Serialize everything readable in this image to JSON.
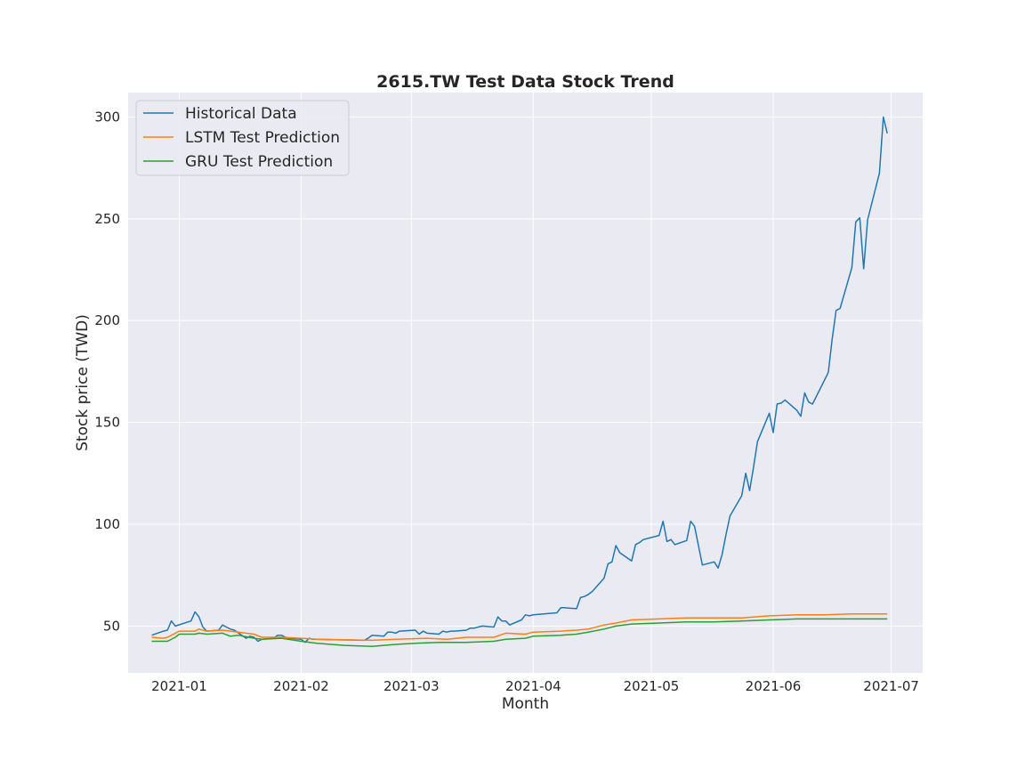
{
  "chart_data": {
    "type": "line",
    "title": "2615.TW  Test Data Stock Trend",
    "xlabel": "Month",
    "ylabel": "Stock price (TWD)",
    "x_range": [
      "2020-12-19",
      "2021-07-09"
    ],
    "ylim": [
      27,
      312
    ],
    "y_ticks": [
      50,
      100,
      150,
      200,
      250,
      300
    ],
    "x_ticks": [
      {
        "date": "2021-01-01",
        "label": "2021-01"
      },
      {
        "date": "2021-02-01",
        "label": "2021-02"
      },
      {
        "date": "2021-03-01",
        "label": "2021-03"
      },
      {
        "date": "2021-04-01",
        "label": "2021-04"
      },
      {
        "date": "2021-05-01",
        "label": "2021-05"
      },
      {
        "date": "2021-06-01",
        "label": "2021-06"
      },
      {
        "date": "2021-07-01",
        "label": "2021-07"
      }
    ],
    "grid": true,
    "legend_position": "top-left",
    "background": "#eaeaf2",
    "series": [
      {
        "name": "Historical Data",
        "color": "#1f77b4",
        "points": [
          [
            "2020-12-25",
            45.5
          ],
          [
            "2020-12-28",
            47.5
          ],
          [
            "2020-12-29",
            48.0
          ],
          [
            "2020-12-30",
            52.5
          ],
          [
            "2020-12-31",
            50.0
          ],
          [
            "2021-01-04",
            52.5
          ],
          [
            "2021-01-05",
            57.0
          ],
          [
            "2021-01-06",
            54.5
          ],
          [
            "2021-01-07",
            49.5
          ],
          [
            "2021-01-08",
            47.5
          ],
          [
            "2021-01-11",
            48.0
          ],
          [
            "2021-01-12",
            50.5
          ],
          [
            "2021-01-13",
            49.5
          ],
          [
            "2021-01-14",
            48.5
          ],
          [
            "2021-01-15",
            48.0
          ],
          [
            "2021-01-18",
            44.0
          ],
          [
            "2021-01-19",
            45.0
          ],
          [
            "2021-01-20",
            44.5
          ],
          [
            "2021-01-21",
            42.5
          ],
          [
            "2021-01-22",
            43.5
          ],
          [
            "2021-01-25",
            44.0
          ],
          [
            "2021-01-26",
            45.5
          ],
          [
            "2021-01-27",
            45.5
          ],
          [
            "2021-01-28",
            44.5
          ],
          [
            "2021-01-29",
            44.0
          ],
          [
            "2021-02-01",
            43.5
          ],
          [
            "2021-02-02",
            42.0
          ],
          [
            "2021-02-03",
            44.0
          ],
          [
            "2021-02-04",
            43.5
          ],
          [
            "2021-02-05",
            43.5
          ],
          [
            "2021-02-17",
            43.0
          ],
          [
            "2021-02-18",
            44.0
          ],
          [
            "2021-02-19",
            45.5
          ],
          [
            "2021-02-22",
            45.0
          ],
          [
            "2021-02-23",
            47.0
          ],
          [
            "2021-02-24",
            47.0
          ],
          [
            "2021-02-25",
            46.5
          ],
          [
            "2021-02-26",
            47.5
          ],
          [
            "2021-03-02",
            48.0
          ],
          [
            "2021-03-03",
            46.0
          ],
          [
            "2021-03-04",
            47.5
          ],
          [
            "2021-03-05",
            46.5
          ],
          [
            "2021-03-08",
            46.0
          ],
          [
            "2021-03-09",
            47.5
          ],
          [
            "2021-03-10",
            47.0
          ],
          [
            "2021-03-11",
            47.5
          ],
          [
            "2021-03-12",
            47.5
          ],
          [
            "2021-03-15",
            48.0
          ],
          [
            "2021-03-16",
            49.0
          ],
          [
            "2021-03-17",
            49.0
          ],
          [
            "2021-03-18",
            49.5
          ],
          [
            "2021-03-19",
            50.0
          ],
          [
            "2021-03-22",
            49.5
          ],
          [
            "2021-03-23",
            54.5
          ],
          [
            "2021-03-24",
            52.5
          ],
          [
            "2021-03-25",
            52.5
          ],
          [
            "2021-03-26",
            50.5
          ],
          [
            "2021-03-29",
            53.0
          ],
          [
            "2021-03-30",
            55.5
          ],
          [
            "2021-03-31",
            55.0
          ],
          [
            "2021-04-01",
            55.5
          ],
          [
            "2021-04-07",
            56.5
          ],
          [
            "2021-04-08",
            59.0
          ],
          [
            "2021-04-09",
            59.0
          ],
          [
            "2021-04-12",
            58.5
          ],
          [
            "2021-04-13",
            64.0
          ],
          [
            "2021-04-14",
            64.5
          ],
          [
            "2021-04-15",
            65.5
          ],
          [
            "2021-04-16",
            67.0
          ],
          [
            "2021-04-19",
            73.5
          ],
          [
            "2021-04-20",
            80.5
          ],
          [
            "2021-04-21",
            81.5
          ],
          [
            "2021-04-22",
            89.5
          ],
          [
            "2021-04-23",
            86.0
          ],
          [
            "2021-04-26",
            82.0
          ],
          [
            "2021-04-27",
            90.0
          ],
          [
            "2021-04-28",
            91.0
          ],
          [
            "2021-04-29",
            92.5
          ],
          [
            "2021-05-03",
            94.5
          ],
          [
            "2021-05-04",
            101.5
          ],
          [
            "2021-05-05",
            91.5
          ],
          [
            "2021-05-06",
            92.5
          ],
          [
            "2021-05-07",
            90.0
          ],
          [
            "2021-05-10",
            92.0
          ],
          [
            "2021-05-11",
            101.5
          ],
          [
            "2021-05-12",
            99.0
          ],
          [
            "2021-05-13",
            89.5
          ],
          [
            "2021-05-14",
            80.0
          ],
          [
            "2021-05-17",
            81.5
          ],
          [
            "2021-05-18",
            78.5
          ],
          [
            "2021-05-19",
            85.0
          ],
          [
            "2021-05-20",
            95.0
          ],
          [
            "2021-05-21",
            104.0
          ],
          [
            "2021-05-24",
            114.0
          ],
          [
            "2021-05-25",
            125.0
          ],
          [
            "2021-05-26",
            116.5
          ],
          [
            "2021-05-27",
            128.0
          ],
          [
            "2021-05-28",
            140.5
          ],
          [
            "2021-05-31",
            154.5
          ],
          [
            "2021-06-01",
            145.0
          ],
          [
            "2021-06-02",
            159.0
          ],
          [
            "2021-06-03",
            159.5
          ],
          [
            "2021-06-04",
            161.0
          ],
          [
            "2021-06-07",
            156.0
          ],
          [
            "2021-06-08",
            153.0
          ],
          [
            "2021-06-09",
            164.5
          ],
          [
            "2021-06-10",
            160.0
          ],
          [
            "2021-06-11",
            159.0
          ],
          [
            "2021-06-15",
            174.5
          ],
          [
            "2021-06-16",
            191.0
          ],
          [
            "2021-06-17",
            205.0
          ],
          [
            "2021-06-18",
            206.0
          ],
          [
            "2021-06-21",
            226.0
          ],
          [
            "2021-06-22",
            248.5
          ],
          [
            "2021-06-23",
            250.5
          ],
          [
            "2021-06-24",
            225.5
          ],
          [
            "2021-06-25",
            249.5
          ],
          [
            "2021-06-28",
            272.5
          ],
          [
            "2021-06-29",
            300.0
          ],
          [
            "2021-06-30",
            292.0
          ]
        ]
      },
      {
        "name": "LSTM Test Prediction",
        "color": "#ff7f0e",
        "points": [
          [
            "2020-12-25",
            44.5
          ],
          [
            "2020-12-28",
            44.0
          ],
          [
            "2020-12-29",
            44.5
          ],
          [
            "2020-12-31",
            46.5
          ],
          [
            "2021-01-01",
            47.5
          ],
          [
            "2021-01-05",
            47.5
          ],
          [
            "2021-01-06",
            48.5
          ],
          [
            "2021-01-08",
            47.5
          ],
          [
            "2021-01-12",
            48.0
          ],
          [
            "2021-01-14",
            47.5
          ],
          [
            "2021-01-18",
            46.5
          ],
          [
            "2021-01-20",
            46.0
          ],
          [
            "2021-01-22",
            44.5
          ],
          [
            "2021-01-27",
            44.5
          ],
          [
            "2021-02-01",
            44.0
          ],
          [
            "2021-02-05",
            43.5
          ],
          [
            "2021-02-19",
            43.0
          ],
          [
            "2021-02-25",
            43.5
          ],
          [
            "2021-03-05",
            44.0
          ],
          [
            "2021-03-10",
            43.5
          ],
          [
            "2021-03-15",
            44.5
          ],
          [
            "2021-03-22",
            44.5
          ],
          [
            "2021-03-25",
            46.5
          ],
          [
            "2021-03-30",
            46.0
          ],
          [
            "2021-04-01",
            47.0
          ],
          [
            "2021-04-08",
            47.5
          ],
          [
            "2021-04-12",
            48.0
          ],
          [
            "2021-04-15",
            48.5
          ],
          [
            "2021-04-19",
            50.5
          ],
          [
            "2021-04-22",
            51.5
          ],
          [
            "2021-04-26",
            53.0
          ],
          [
            "2021-05-03",
            53.5
          ],
          [
            "2021-05-10",
            54.0
          ],
          [
            "2021-05-17",
            54.0
          ],
          [
            "2021-05-24",
            54.0
          ],
          [
            "2021-05-31",
            55.0
          ],
          [
            "2021-06-07",
            55.5
          ],
          [
            "2021-06-14",
            55.5
          ],
          [
            "2021-06-21",
            56.0
          ],
          [
            "2021-06-30",
            56.0
          ]
        ]
      },
      {
        "name": "GRU Test Prediction",
        "color": "#2ca02c",
        "points": [
          [
            "2020-12-25",
            42.5
          ],
          [
            "2020-12-28",
            42.5
          ],
          [
            "2020-12-29",
            42.5
          ],
          [
            "2020-12-31",
            44.5
          ],
          [
            "2021-01-01",
            46.0
          ],
          [
            "2021-01-05",
            46.0
          ],
          [
            "2021-01-06",
            46.5
          ],
          [
            "2021-01-08",
            46.0
          ],
          [
            "2021-01-12",
            46.5
          ],
          [
            "2021-01-14",
            45.0
          ],
          [
            "2021-01-16",
            45.5
          ],
          [
            "2021-01-20",
            44.0
          ],
          [
            "2021-01-22",
            43.5
          ],
          [
            "2021-01-27",
            44.0
          ],
          [
            "2021-02-01",
            42.5
          ],
          [
            "2021-02-05",
            41.5
          ],
          [
            "2021-02-12",
            40.5
          ],
          [
            "2021-02-19",
            40.0
          ],
          [
            "2021-02-25",
            41.0
          ],
          [
            "2021-03-02",
            41.5
          ],
          [
            "2021-03-08",
            42.0
          ],
          [
            "2021-03-15",
            42.0
          ],
          [
            "2021-03-22",
            42.5
          ],
          [
            "2021-03-25",
            43.5
          ],
          [
            "2021-03-30",
            44.0
          ],
          [
            "2021-04-01",
            45.0
          ],
          [
            "2021-04-08",
            45.5
          ],
          [
            "2021-04-12",
            46.0
          ],
          [
            "2021-04-15",
            47.0
          ],
          [
            "2021-04-19",
            48.5
          ],
          [
            "2021-04-22",
            50.0
          ],
          [
            "2021-04-26",
            51.0
          ],
          [
            "2021-05-03",
            51.5
          ],
          [
            "2021-05-10",
            52.0
          ],
          [
            "2021-05-17",
            52.0
          ],
          [
            "2021-05-24",
            52.5
          ],
          [
            "2021-05-31",
            53.0
          ],
          [
            "2021-06-07",
            53.5
          ],
          [
            "2021-06-14",
            53.5
          ],
          [
            "2021-06-21",
            53.5
          ],
          [
            "2021-06-30",
            53.5
          ]
        ]
      }
    ]
  }
}
